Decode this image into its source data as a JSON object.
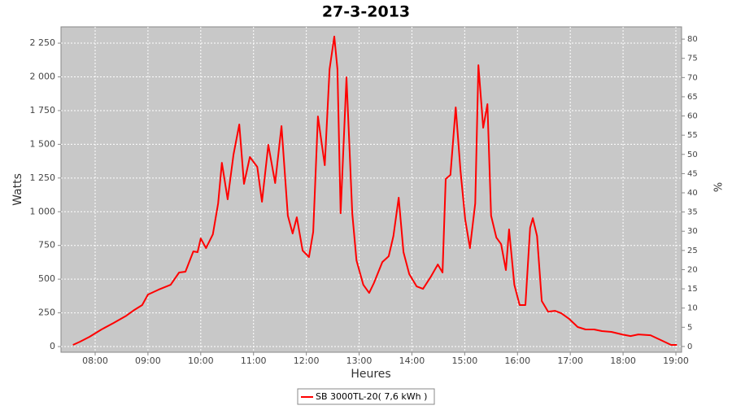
{
  "chart_data": {
    "type": "line",
    "title": "27-3-2013",
    "x_label": "Heures",
    "y_label": "Watts",
    "y2_label": "%",
    "x": [
      7.58,
      7.71,
      7.89,
      8.12,
      8.35,
      8.59,
      8.74,
      8.89,
      9.0,
      9.2,
      9.43,
      9.59,
      9.71,
      9.86,
      9.94,
      10.0,
      10.1,
      10.23,
      10.33,
      10.4,
      10.51,
      10.62,
      10.73,
      10.82,
      10.93,
      11.07,
      11.16,
      11.28,
      11.41,
      11.53,
      11.65,
      11.74,
      11.82,
      11.93,
      12.05,
      12.13,
      12.22,
      12.35,
      12.44,
      12.53,
      12.59,
      12.65,
      12.76,
      12.87,
      12.95,
      13.08,
      13.19,
      13.28,
      13.44,
      13.56,
      13.65,
      13.75,
      13.84,
      13.95,
      14.09,
      14.21,
      14.36,
      14.49,
      14.58,
      14.64,
      14.73,
      14.83,
      14.92,
      15.01,
      15.1,
      15.2,
      15.26,
      15.35,
      15.43,
      15.5,
      15.6,
      15.69,
      15.78,
      15.84,
      15.94,
      16.04,
      16.15,
      16.24,
      16.29,
      16.37,
      16.46,
      16.58,
      16.71,
      16.83,
      16.98,
      17.14,
      17.29,
      17.45,
      17.6,
      17.78,
      17.98,
      18.14,
      18.29,
      18.52,
      18.75,
      18.91,
      19.02
    ],
    "series": [
      {
        "name": "SB 3000TL-20( 7,6 kWh )",
        "color": "#ff0000",
        "values": [
          12,
          36,
          72,
          127,
          175,
          229,
          271,
          308,
          386,
          422,
          458,
          549,
          555,
          706,
          700,
          802,
          730,
          832,
          1062,
          1363,
          1092,
          1424,
          1647,
          1207,
          1406,
          1333,
          1074,
          1496,
          1213,
          1635,
          971,
          839,
          959,
          712,
          664,
          851,
          1707,
          1345,
          2057,
          2299,
          2057,
          989,
          1997,
          989,
          639,
          458,
          398,
          471,
          627,
          670,
          820,
          1104,
          700,
          537,
          446,
          428,
          519,
          609,
          549,
          1243,
          1273,
          1774,
          1303,
          941,
          730,
          1062,
          2087,
          1623,
          1798,
          971,
          808,
          760,
          567,
          869,
          458,
          308,
          308,
          881,
          953,
          820,
          338,
          259,
          265,
          247,
          205,
          145,
          127,
          127,
          115,
          109,
          90,
          78,
          90,
          84,
          42,
          12,
          12
        ]
      }
    ],
    "xlim": [
      7.353,
      19.108
    ],
    "xticks": [
      {
        "value": 8,
        "label": "08:00"
      },
      {
        "value": 9,
        "label": "09:00"
      },
      {
        "value": 10,
        "label": "10:00"
      },
      {
        "value": 11,
        "label": "11:00"
      },
      {
        "value": 12,
        "label": "12:00"
      },
      {
        "value": 13,
        "label": "13:00"
      },
      {
        "value": 14,
        "label": "14:00"
      },
      {
        "value": 15,
        "label": "15:00"
      },
      {
        "value": 16,
        "label": "16:00"
      },
      {
        "value": 17,
        "label": "17:00"
      },
      {
        "value": 18,
        "label": "18:00"
      },
      {
        "value": 19,
        "label": "19:00"
      }
    ],
    "ylim": [
      -42,
      2371
    ],
    "yticks": [
      0,
      250,
      500,
      750,
      {
        "value": 1000,
        "label": "1 000"
      },
      {
        "value": 1250,
        "label": "1 250"
      },
      {
        "value": 1500,
        "label": "1 500"
      },
      {
        "value": 1750,
        "label": "1 750"
      },
      {
        "value": 2000,
        "label": "2 000"
      },
      {
        "value": 2250,
        "label": "2 250"
      }
    ],
    "y2lim": [
      -1.5,
      83.2
    ],
    "y2ticks": [
      0,
      5,
      10,
      15,
      20,
      25,
      30,
      35,
      40,
      45,
      50,
      55,
      60,
      65,
      70,
      75,
      80
    ],
    "grid": true
  }
}
